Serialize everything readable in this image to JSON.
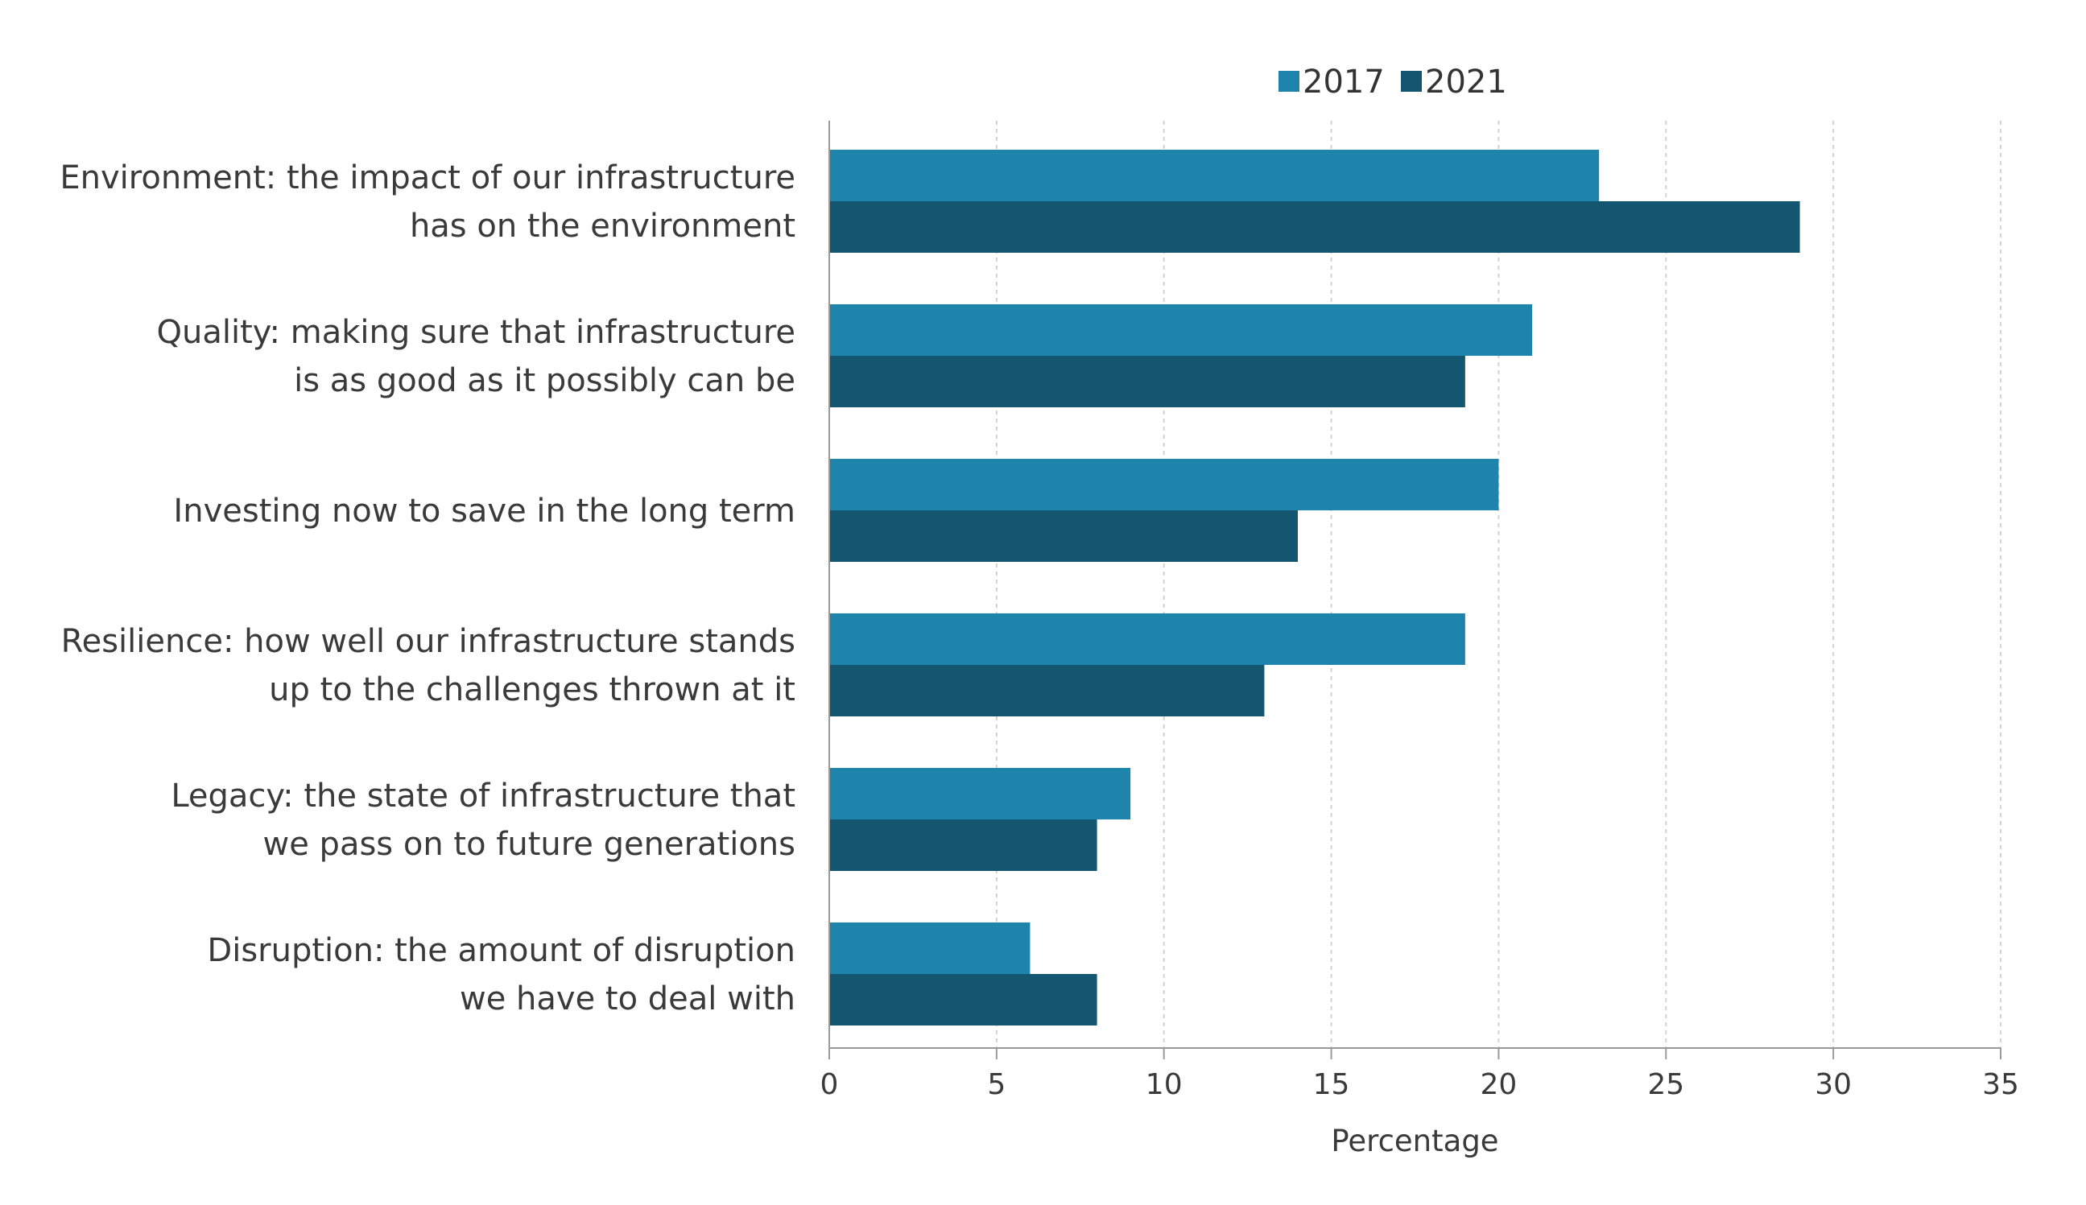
{
  "chart_data": {
    "type": "bar",
    "orientation": "horizontal",
    "categories": [
      [
        "Environment: the impact of our infrastructure",
        "has on the environment"
      ],
      [
        "Quality: making sure that infrastructure",
        "is as good as it possibly can be"
      ],
      [
        "Investing now to save in the long term"
      ],
      [
        "Resilience: how well our infrastructure stands",
        "up to the challenges thrown at it"
      ],
      [
        "Legacy: the state of infrastructure that",
        "we pass on to future generations"
      ],
      [
        "Disruption: the amount of disruption",
        "we have to deal with"
      ]
    ],
    "series": [
      {
        "name": "2017",
        "color": "#1f84ac",
        "values": [
          23,
          21,
          20,
          19,
          9,
          6
        ]
      },
      {
        "name": "2021",
        "color": "#145670",
        "values": [
          29,
          19,
          14,
          13,
          8,
          8
        ]
      }
    ],
    "xlabel": "Percentage",
    "xlim": [
      0,
      35
    ],
    "xticks": [
      0,
      5,
      10,
      15,
      20,
      25,
      30,
      35
    ],
    "grid": "vertical-dashed",
    "legend": "top"
  }
}
